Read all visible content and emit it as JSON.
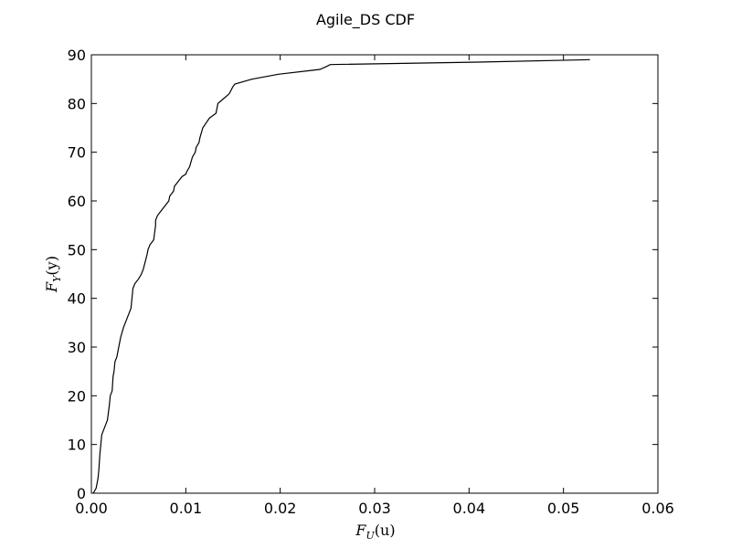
{
  "chart_data": {
    "type": "line",
    "title": "Agile_DS CDF",
    "xlabel": {
      "main": "F",
      "sub": "U",
      "arg": "(u)"
    },
    "ylabel": {
      "main": "F",
      "sub": "Y",
      "arg": "(y)"
    },
    "xlim": [
      0,
      0.06
    ],
    "ylim": [
      0,
      90
    ],
    "xticks": [
      0,
      0.01,
      0.02,
      0.03,
      0.04,
      0.05,
      0.06
    ],
    "xtick_labels": [
      "0.00",
      "0.01",
      "0.02",
      "0.03",
      "0.04",
      "0.05",
      "0.06"
    ],
    "yticks": [
      0,
      10,
      20,
      30,
      40,
      50,
      60,
      70,
      80,
      90
    ],
    "ytick_labels": [
      "0",
      "10",
      "20",
      "30",
      "40",
      "50",
      "60",
      "70",
      "80",
      "90"
    ],
    "grid": false,
    "line_color": "#000000",
    "series": [
      {
        "x": [
          0.0002,
          0.0005,
          0.0007,
          0.0008,
          0.0009,
          0.001,
          0.0011,
          0.0013,
          0.0017,
          0.0019,
          0.002,
          0.0022,
          0.0023,
          0.0024,
          0.0025,
          0.0027,
          0.0029,
          0.0031,
          0.0034,
          0.0036,
          0.004,
          0.0042,
          0.0043,
          0.0044,
          0.0046,
          0.005,
          0.0053,
          0.0055,
          0.0059,
          0.006,
          0.0062,
          0.0066,
          0.0068,
          0.0068,
          0.007,
          0.0074,
          0.0078,
          0.0082,
          0.0083,
          0.0087,
          0.0088,
          0.0092,
          0.0096,
          0.01,
          0.0101,
          0.0104,
          0.0107,
          0.011,
          0.0111,
          0.0114,
          0.0115,
          0.0118,
          0.0125,
          0.0132,
          0.0134,
          0.014,
          0.0146,
          0.015,
          0.0152,
          0.017,
          0.0198,
          0.0242,
          0.0248,
          0.0253,
          0.041,
          0.0528
        ],
        "y": [
          0,
          1,
          3,
          5,
          8,
          10,
          12,
          13,
          15,
          18,
          20,
          21,
          24,
          25,
          27,
          28,
          30,
          32,
          34,
          35,
          37,
          38,
          40,
          42,
          43,
          44,
          45,
          46,
          49,
          50,
          51,
          52,
          55,
          56,
          57,
          58,
          59,
          60,
          61,
          62,
          63,
          64,
          65,
          65.5,
          66,
          67,
          69,
          70,
          71,
          72,
          73,
          75,
          77,
          78,
          80,
          81,
          82,
          83.5,
          84,
          85,
          86,
          87,
          87.5,
          88,
          88.5,
          89
        ]
      }
    ]
  }
}
